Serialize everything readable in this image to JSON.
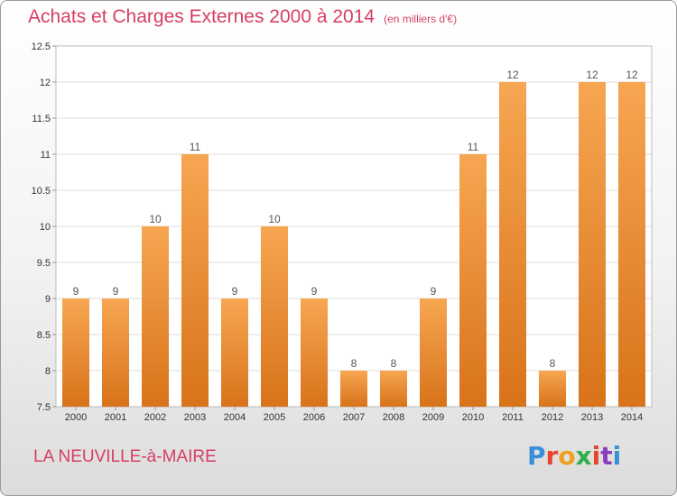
{
  "title": "Achats et Charges Externes 2000 à 2014",
  "unit": "(en milliers d'€)",
  "commune": "LA NEUVILLE-à-MAIRE",
  "brand": {
    "text": "Proxiti",
    "colors": [
      "#3a8fd8",
      "#e8452c",
      "#f0a020",
      "#2fae4a",
      "#e8452c",
      "#8a3fc0",
      "#3a8fd8"
    ]
  },
  "chart_data": {
    "type": "bar",
    "categories": [
      "2000",
      "2001",
      "2002",
      "2003",
      "2004",
      "2005",
      "2006",
      "2007",
      "2008",
      "2009",
      "2010",
      "2011",
      "2012",
      "2013",
      "2014"
    ],
    "values": [
      9,
      9,
      10,
      11,
      9,
      10,
      9,
      8,
      8,
      9,
      11,
      12,
      8,
      12,
      12
    ],
    "data_labels": [
      "9",
      "9",
      "10",
      "11",
      "9",
      "10",
      "9",
      "8",
      "8",
      "9",
      "11",
      "12",
      "8",
      "12",
      "12"
    ],
    "ylim": [
      7.5,
      12.5
    ],
    "yticks": [
      "7.5",
      "8",
      "8.5",
      "9",
      "9.5",
      "10",
      "10.5",
      "11",
      "11.5",
      "12",
      "12.5"
    ],
    "grid": true,
    "bar_color": "#f0922e",
    "xlabel": "",
    "ylabel": ""
  }
}
